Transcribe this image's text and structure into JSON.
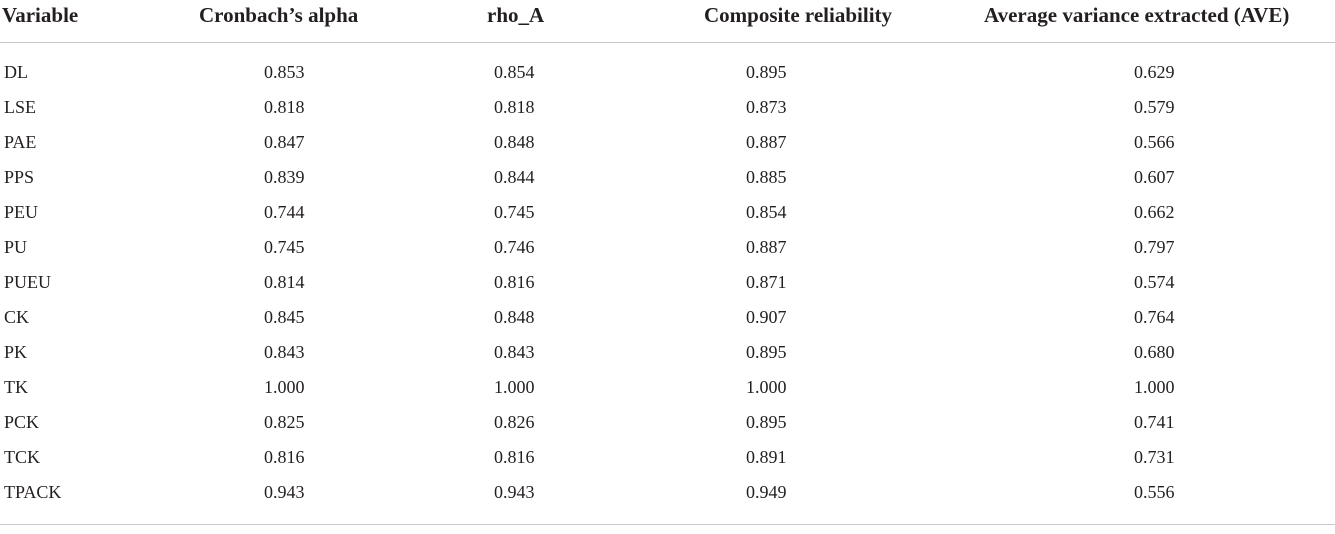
{
  "table": {
    "headers": {
      "variable": "Variable",
      "alpha": "Cronbach’s alpha",
      "rho": "rho_A",
      "cr": "Composite reliability",
      "ave": "Average variance extracted (AVE)"
    },
    "rows": [
      {
        "variable": "DL",
        "alpha": "0.853",
        "rho": "0.854",
        "cr": "0.895",
        "ave": "0.629"
      },
      {
        "variable": "LSE",
        "alpha": "0.818",
        "rho": "0.818",
        "cr": "0.873",
        "ave": "0.579"
      },
      {
        "variable": "PAE",
        "alpha": "0.847",
        "rho": "0.848",
        "cr": "0.887",
        "ave": "0.566"
      },
      {
        "variable": "PPS",
        "alpha": "0.839",
        "rho": "0.844",
        "cr": "0.885",
        "ave": "0.607"
      },
      {
        "variable": "PEU",
        "alpha": "0.744",
        "rho": "0.745",
        "cr": "0.854",
        "ave": "0.662"
      },
      {
        "variable": "PU",
        "alpha": "0.745",
        "rho": "0.746",
        "cr": "0.887",
        "ave": "0.797"
      },
      {
        "variable": "PUEU",
        "alpha": "0.814",
        "rho": "0.816",
        "cr": "0.871",
        "ave": "0.574"
      },
      {
        "variable": "CK",
        "alpha": "0.845",
        "rho": "0.848",
        "cr": "0.907",
        "ave": "0.764"
      },
      {
        "variable": "PK",
        "alpha": "0.843",
        "rho": "0.843",
        "cr": "0.895",
        "ave": "0.680"
      },
      {
        "variable": "TK",
        "alpha": "1.000",
        "rho": "1.000",
        "cr": "1.000",
        "ave": "1.000"
      },
      {
        "variable": "PCK",
        "alpha": "0.825",
        "rho": "0.826",
        "cr": "0.895",
        "ave": "0.741"
      },
      {
        "variable": "TCK",
        "alpha": "0.816",
        "rho": "0.816",
        "cr": "0.891",
        "ave": "0.731"
      },
      {
        "variable": "TPACK",
        "alpha": "0.943",
        "rho": "0.943",
        "cr": "0.949",
        "ave": "0.556"
      }
    ]
  }
}
